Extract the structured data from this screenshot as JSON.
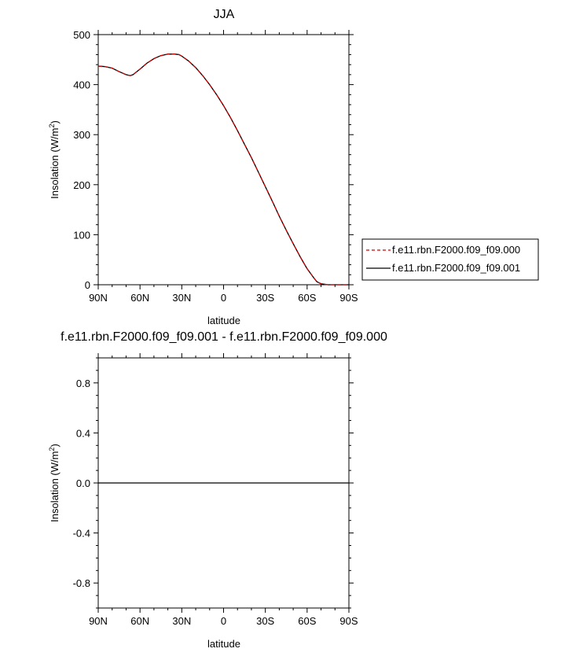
{
  "chart_data": [
    {
      "type": "line",
      "title": "JJA",
      "xlabel": "latitude",
      "ylabel": "Insolation (W/m",
      "ylabel_sup": "2",
      "ylabel_close": ")",
      "xlim": [
        90,
        -90
      ],
      "ylim": [
        0,
        500
      ],
      "xticks": [
        90,
        60,
        30,
        0,
        -30,
        -60,
        -90
      ],
      "xtick_labels": [
        "90N",
        "60N",
        "30N",
        "0",
        "30S",
        "60S",
        "90S"
      ],
      "yticks": [
        0,
        100,
        200,
        300,
        400,
        500
      ],
      "ytick_labels": [
        "0",
        "100",
        "200",
        "300",
        "400",
        "500"
      ],
      "legend_position": "right",
      "series": [
        {
          "name": "f.e11.rbn.F2000.f09_f09.000",
          "color": "#cc0000",
          "style": "dashed",
          "x": [
            90,
            85,
            80,
            75,
            70,
            67,
            65,
            60,
            55,
            50,
            45,
            40,
            35,
            32,
            30,
            25,
            20,
            15,
            10,
            5,
            0,
            -5,
            -10,
            -15,
            -20,
            -25,
            -30,
            -35,
            -40,
            -45,
            -50,
            -55,
            -60,
            -65,
            -67,
            -70,
            -75,
            -80,
            -85,
            -90
          ],
          "y": [
            437,
            436,
            433,
            426,
            420,
            418,
            420,
            431,
            443,
            452,
            458,
            461,
            461,
            460,
            457,
            447,
            434,
            418,
            400,
            380,
            358,
            334,
            308,
            281,
            254,
            225,
            196,
            167,
            137,
            109,
            82,
            56,
            32,
            13,
            6,
            2,
            0,
            0,
            0,
            0
          ]
        },
        {
          "name": "f.e11.rbn.F2000.f09_f09.001",
          "color": "#000000",
          "style": "solid",
          "x": [
            90,
            85,
            80,
            75,
            70,
            67,
            65,
            60,
            55,
            50,
            45,
            40,
            35,
            32,
            30,
            25,
            20,
            15,
            10,
            5,
            0,
            -5,
            -10,
            -15,
            -20,
            -25,
            -30,
            -35,
            -40,
            -45,
            -50,
            -55,
            -60,
            -65,
            -67,
            -70,
            -75,
            -80,
            -85,
            -90
          ],
          "y": [
            437,
            436,
            433,
            426,
            420,
            418,
            420,
            431,
            443,
            452,
            458,
            461,
            461,
            460,
            457,
            447,
            434,
            418,
            400,
            380,
            358,
            334,
            308,
            281,
            254,
            225,
            196,
            167,
            137,
            109,
            82,
            56,
            32,
            13,
            6,
            2,
            0,
            0,
            0,
            0
          ]
        }
      ]
    },
    {
      "type": "line",
      "title": "f.e11.rbn.F2000.f09_f09.001 - f.e11.rbn.F2000.f09_f09.000",
      "xlabel": "latitude",
      "ylabel": "Insolation (W/m",
      "ylabel_sup": "2",
      "ylabel_close": ")",
      "xlim": [
        90,
        -90
      ],
      "ylim": [
        -1,
        1
      ],
      "xticks": [
        90,
        60,
        30,
        0,
        -30,
        -60,
        -90
      ],
      "xtick_labels": [
        "90N",
        "60N",
        "30N",
        "0",
        "30S",
        "60S",
        "90S"
      ],
      "yticks": [
        -0.8,
        -0.4,
        0.0,
        0.4,
        0.8
      ],
      "ytick_labels": [
        "-0.8",
        "-0.4",
        "0.0",
        "0.4",
        "0.8"
      ],
      "series": [
        {
          "color": "#000000",
          "style": "solid",
          "x": [
            90,
            -90
          ],
          "y": [
            0,
            0
          ]
        }
      ]
    }
  ]
}
